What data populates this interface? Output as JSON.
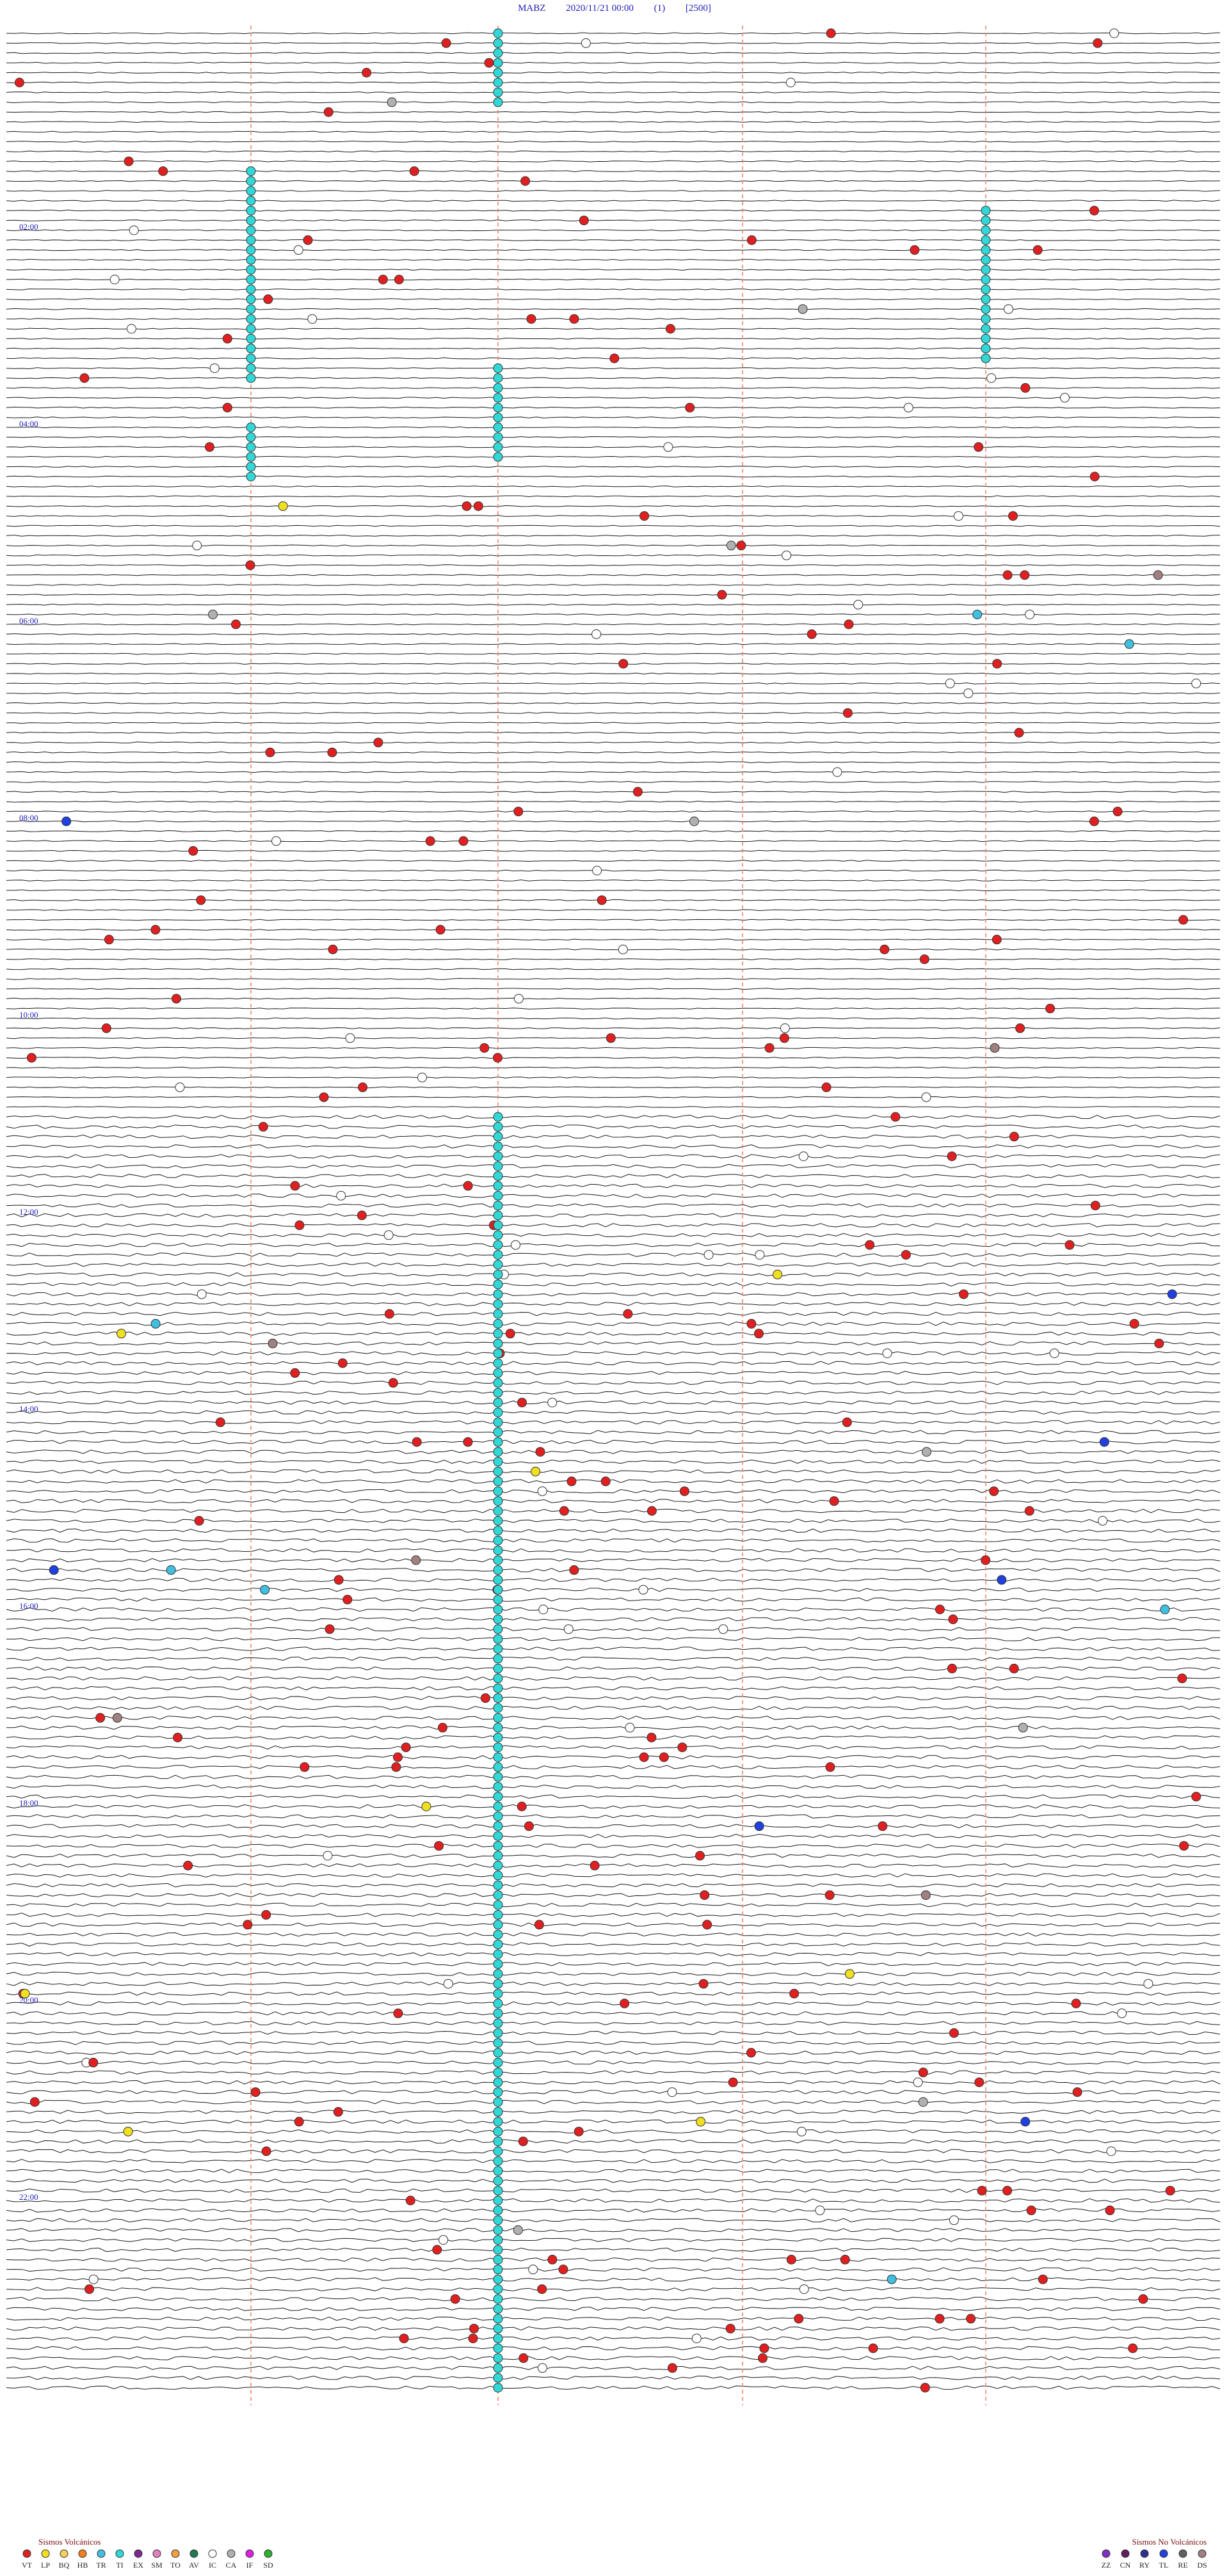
{
  "header": {
    "station": "MABZ",
    "datetime": "2020/11/21 00:00",
    "channel": "(1)",
    "scale": "[2500]"
  },
  "hour_labels": [
    "02:00",
    "04:00",
    "06:00",
    "08:00",
    "10:00",
    "12:00",
    "14:00",
    "16:00",
    "18:00",
    "20:00",
    "22:00"
  ],
  "legend": {
    "volcanic_title": "Sismos Volcánicos",
    "volcanic": [
      {
        "code": "VT",
        "color": "#e02020"
      },
      {
        "code": "LP",
        "color": "#f0e020"
      },
      {
        "code": "BQ",
        "color": "#f4d060"
      },
      {
        "code": "HB",
        "color": "#f08020"
      },
      {
        "code": "TR",
        "color": "#40c0e0"
      },
      {
        "code": "TI",
        "color": "#30d8d8"
      },
      {
        "code": "EX",
        "color": "#7a2a8a"
      },
      {
        "code": "SM",
        "color": "#e080c0"
      },
      {
        "code": "TO",
        "color": "#f0a040"
      },
      {
        "code": "AV",
        "color": "#207a50"
      },
      {
        "code": "IC",
        "color": "#ffffff"
      },
      {
        "code": "CA",
        "color": "#b0b0b0"
      },
      {
        "code": "IF",
        "color": "#e020e0"
      },
      {
        "code": "SD",
        "color": "#30b030"
      }
    ],
    "nonvolcanic_title": "Sismos No Volcánicos",
    "nonvolcanic": [
      {
        "code": "ZZ",
        "color": "#8030c0"
      },
      {
        "code": "CN",
        "color": "#602060"
      },
      {
        "code": "RY",
        "color": "#303090"
      },
      {
        "code": "TL",
        "color": "#2040e0"
      },
      {
        "code": "RE",
        "color": "#606060"
      },
      {
        "code": "DS",
        "color": "#a08080"
      }
    ]
  },
  "colors": {
    "trace": "#1a1a1a",
    "hour_label": "#1a1ab8",
    "marker_line": "#f08060"
  }
}
